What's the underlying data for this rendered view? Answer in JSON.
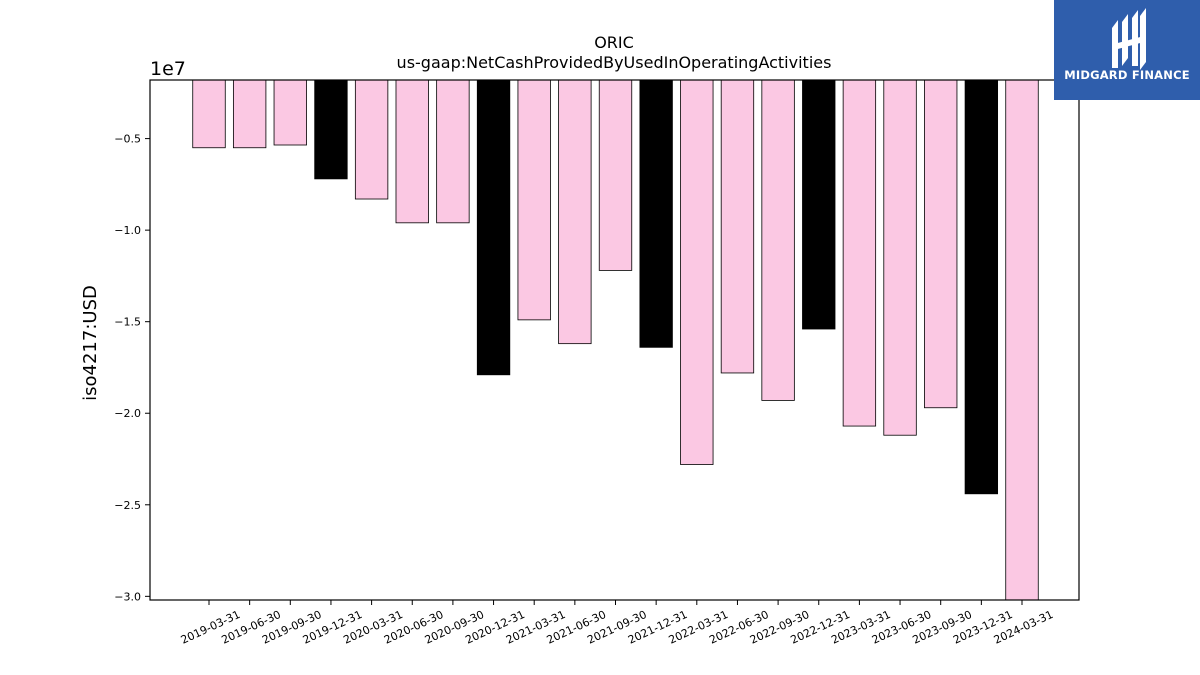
{
  "chart_data": {
    "type": "bar",
    "title": "ORIC",
    "subtitle": "us-gaap:NetCashProvidedByUsedInOperatingActivities",
    "ylabel": "iso4217:USD",
    "xlabel": "",
    "y_offset_label": "1e7",
    "ylim": [
      -30200000,
      -1800000
    ],
    "yticks": [
      -0.5,
      -1.0,
      -1.5,
      -2.0,
      -2.5,
      -3.0
    ],
    "ytick_labels": [
      "−0.5",
      "−1.0",
      "−1.5",
      "−2.0",
      "−2.5",
      "−3.0"
    ],
    "grid": false,
    "categories": [
      "2019-03-31",
      "2019-06-30",
      "2019-09-30",
      "2019-12-31",
      "2020-03-31",
      "2020-06-30",
      "2020-09-30",
      "2020-12-31",
      "2021-03-31",
      "2021-06-30",
      "2021-09-30",
      "2021-12-31",
      "2022-03-31",
      "2022-06-30",
      "2022-09-30",
      "2022-12-31",
      "2023-03-31",
      "2023-06-30",
      "2023-09-30",
      "2023-12-31",
      "2024-03-31"
    ],
    "values": [
      -5500000,
      -5500000,
      -5350000,
      -7200000,
      -8300000,
      -9600000,
      -9600000,
      -17900000,
      -14900000,
      -16200000,
      -12200000,
      -16400000,
      -22800000,
      -17800000,
      -19300000,
      -15400000,
      -20700000,
      -21200000,
      -19700000,
      -24400000,
      -30200000
    ],
    "bar_colors": [
      "#fbc8e3",
      "#fbc8e3",
      "#fbc8e3",
      "#000000",
      "#fbc8e3",
      "#fbc8e3",
      "#fbc8e3",
      "#000000",
      "#fbc8e3",
      "#fbc8e3",
      "#fbc8e3",
      "#000000",
      "#fbc8e3",
      "#fbc8e3",
      "#fbc8e3",
      "#000000",
      "#fbc8e3",
      "#fbc8e3",
      "#fbc8e3",
      "#000000",
      "#fbc8e3"
    ]
  },
  "logo": {
    "text": "MIDGARD FINANCE",
    "background": "#2f5eac"
  }
}
